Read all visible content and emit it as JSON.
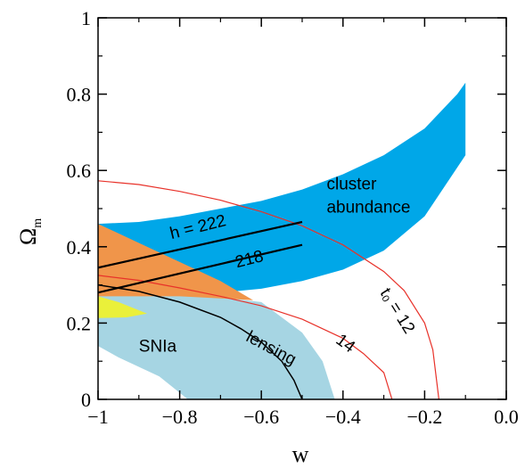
{
  "chart_data": {
    "type": "area",
    "title": "",
    "xlabel": "w",
    "ylabel": "Ω",
    "ylabel_sub": "m",
    "xlim": [
      -1.0,
      0.0
    ],
    "ylim": [
      0.0,
      1.0
    ],
    "xticks": [
      -1,
      -0.8,
      -0.6,
      -0.4,
      -0.2,
      0.0
    ],
    "xtick_labels": [
      "−1",
      "−0.8",
      "−0.6",
      "−0.4",
      "−0.2",
      "0.0"
    ],
    "yticks": [
      0,
      0.2,
      0.4,
      0.6,
      0.8,
      1
    ],
    "ytick_labels": [
      "0",
      "0.2",
      "0.4",
      "0.6",
      "0.8",
      "1"
    ],
    "grid": false,
    "colors": {
      "cluster": "#00a7e8",
      "snia": "#a6d5e3",
      "overlap": "#f0954a",
      "yellow": "#eaf03a",
      "age_curves": "#e8322a",
      "lensing_curve": "#000000",
      "h_lines": "#000000"
    },
    "regions": [
      {
        "name": "cluster",
        "label_lines": [
          "cluster",
          "abundance"
        ],
        "label_pos": [
          -0.44,
          0.55
        ],
        "points": [
          [
            -1.0,
            0.46
          ],
          [
            -0.9,
            0.465
          ],
          [
            -0.8,
            0.48
          ],
          [
            -0.7,
            0.5
          ],
          [
            -0.6,
            0.52
          ],
          [
            -0.5,
            0.55
          ],
          [
            -0.4,
            0.59
          ],
          [
            -0.3,
            0.64
          ],
          [
            -0.2,
            0.71
          ],
          [
            -0.12,
            0.8
          ],
          [
            -0.1,
            0.83
          ],
          [
            -0.1,
            0.64
          ],
          [
            -0.2,
            0.48
          ],
          [
            -0.3,
            0.39
          ],
          [
            -0.4,
            0.34
          ],
          [
            -0.5,
            0.31
          ],
          [
            -0.6,
            0.29
          ],
          [
            -0.7,
            0.28
          ],
          [
            -0.8,
            0.28
          ],
          [
            -0.9,
            0.28
          ],
          [
            -1.0,
            0.28
          ]
        ]
      },
      {
        "name": "snia",
        "label": "SNIa",
        "label_pos": [
          -0.9,
          0.125
        ],
        "points": [
          [
            -1.0,
            0.29
          ],
          [
            -0.8,
            0.28
          ],
          [
            -0.6,
            0.255
          ],
          [
            -0.55,
            0.215
          ],
          [
            -0.5,
            0.175
          ],
          [
            -0.45,
            0.1
          ],
          [
            -0.42,
            0.0
          ],
          [
            -0.78,
            0.0
          ],
          [
            -0.85,
            0.06
          ],
          [
            -0.95,
            0.11
          ],
          [
            -1.0,
            0.14
          ]
        ]
      },
      {
        "name": "overlap",
        "points": [
          [
            -1.0,
            0.46
          ],
          [
            -0.9,
            0.41
          ],
          [
            -0.8,
            0.36
          ],
          [
            -0.7,
            0.31
          ],
          [
            -0.62,
            0.26
          ],
          [
            -0.8,
            0.27
          ],
          [
            -0.9,
            0.27
          ],
          [
            -1.0,
            0.27
          ]
        ]
      },
      {
        "name": "yellow",
        "points": [
          [
            -1.0,
            0.27
          ],
          [
            -0.95,
            0.255
          ],
          [
            -0.88,
            0.225
          ],
          [
            -0.93,
            0.215
          ],
          [
            -1.0,
            0.213
          ]
        ]
      }
    ],
    "lines": [
      {
        "name": "h-222",
        "label": "h = 222",
        "label_pos": [
          -0.82,
          0.42
        ],
        "points": [
          [
            -1.0,
            0.345
          ],
          [
            -0.5,
            0.465
          ]
        ]
      },
      {
        "name": "h-218",
        "label": "218",
        "label_pos": [
          -0.66,
          0.345
        ],
        "points": [
          [
            -1.0,
            0.28
          ],
          [
            -0.5,
            0.405
          ]
        ]
      }
    ],
    "curves": [
      {
        "name": "t0-12",
        "label": "t₀ = 12",
        "label_pos": [
          -0.31,
          0.28
        ],
        "points": [
          [
            -1.0,
            0.573
          ],
          [
            -0.9,
            0.563
          ],
          [
            -0.8,
            0.545
          ],
          [
            -0.7,
            0.522
          ],
          [
            -0.6,
            0.492
          ],
          [
            -0.5,
            0.455
          ],
          [
            -0.4,
            0.405
          ],
          [
            -0.3,
            0.335
          ],
          [
            -0.25,
            0.285
          ],
          [
            -0.2,
            0.2
          ],
          [
            -0.18,
            0.13
          ],
          [
            -0.165,
            0.0
          ]
        ]
      },
      {
        "name": "t0-14",
        "label": "14",
        "label_pos": [
          -0.42,
          0.15
        ],
        "points": [
          [
            -1.0,
            0.325
          ],
          [
            -0.9,
            0.312
          ],
          [
            -0.8,
            0.292
          ],
          [
            -0.7,
            0.27
          ],
          [
            -0.6,
            0.245
          ],
          [
            -0.5,
            0.21
          ],
          [
            -0.4,
            0.16
          ],
          [
            -0.35,
            0.12
          ],
          [
            -0.3,
            0.07
          ],
          [
            -0.28,
            0.0
          ]
        ]
      },
      {
        "name": "lensing",
        "label": "lensing",
        "label_pos": [
          -0.64,
          0.155
        ],
        "points": [
          [
            -1.0,
            0.3
          ],
          [
            -0.9,
            0.283
          ],
          [
            -0.8,
            0.255
          ],
          [
            -0.7,
            0.215
          ],
          [
            -0.65,
            0.185
          ],
          [
            -0.6,
            0.15
          ],
          [
            -0.55,
            0.1
          ],
          [
            -0.52,
            0.05
          ],
          [
            -0.5,
            0.0
          ]
        ]
      }
    ]
  }
}
